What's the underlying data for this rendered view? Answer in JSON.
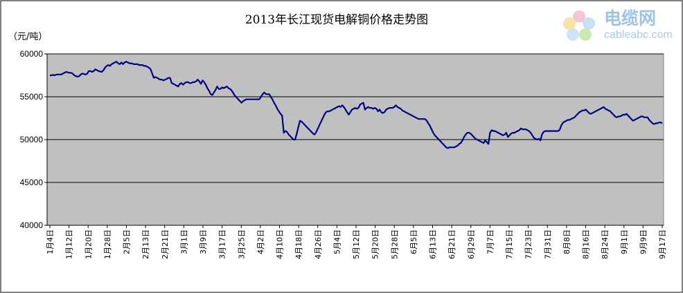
{
  "logo": {
    "text": "电缆网",
    "sub": "cableabc.com"
  },
  "chart_data": {
    "type": "line",
    "title": "2013年长江现货电解铜价格走势图",
    "unit_label": "（元/吨）",
    "ylim": [
      40000,
      60000
    ],
    "yticks": [
      60000,
      55000,
      50000,
      45000,
      40000
    ],
    "grid": true,
    "plot_background": "#c0c0c0",
    "line_color": "#000080",
    "legend": "none",
    "xtick_labels": [
      "1月4日",
      "1月12日",
      "1月20日",
      "1月28日",
      "2月5日",
      "2月13日",
      "2月21日",
      "3月1日",
      "3月9日",
      "3月17日",
      "3月25日",
      "4月2日",
      "4月10日",
      "4月18日",
      "4月26日",
      "5月4日",
      "5月12日",
      "5月20日",
      "5月28日",
      "6月5日",
      "6月13日",
      "6月21日",
      "6月29日",
      "7月7日",
      "7月15日",
      "7月23日",
      "7月31日",
      "8月8日",
      "8月16日",
      "8月24日",
      "9月1日",
      "9月9日",
      "9月17日"
    ],
    "series": [
      {
        "values": [
          57500,
          57500,
          57550,
          57500,
          57600,
          57600,
          57600,
          57600,
          57700,
          57800,
          57900,
          57850,
          57800,
          57800,
          57700,
          57500,
          57400,
          57350,
          57400,
          57600,
          57700,
          57650,
          57600,
          57700,
          58000,
          58000,
          57900,
          58000,
          58200,
          58100,
          58000,
          57950,
          57900,
          58100,
          58400,
          58600,
          58700,
          58600,
          58800,
          58900,
          59000,
          59100,
          58900,
          58800,
          59000,
          58800,
          59000,
          59100,
          59000,
          58900,
          58900,
          58850,
          58800,
          58800,
          58800,
          58700,
          58700,
          58700,
          58600,
          58600,
          58500,
          58400,
          58200,
          57700,
          57200,
          57300,
          57200,
          57100,
          57000,
          57000,
          56900,
          57000,
          57100,
          57200,
          57200,
          56600,
          56500,
          56400,
          56300,
          56200,
          56500,
          56600,
          56400,
          56600,
          56700,
          56700,
          56600,
          56600,
          56700,
          56700,
          56800,
          57000,
          56800,
          56500,
          56900,
          56700,
          56400,
          56000,
          55700,
          55300,
          55200,
          55500,
          55800,
          56200,
          55900,
          55900,
          56100,
          56000,
          56100,
          56200,
          56000,
          55900,
          55700,
          55400,
          55100,
          54900,
          54700,
          54500,
          54300,
          54500,
          54600,
          54700,
          54700,
          54700,
          54700,
          54700,
          54700,
          54700,
          54700,
          54700,
          55000,
          55300,
          55500,
          55300,
          55300,
          55300,
          55000,
          54700,
          54300,
          54000,
          53600,
          53300,
          53000,
          52800,
          50800,
          51000,
          50900,
          50600,
          50400,
          50200,
          50000,
          50000,
          50700,
          51500,
          52200,
          52100,
          51900,
          51700,
          51500,
          51300,
          51100,
          50900,
          50700,
          50600,
          50900,
          51300,
          51700,
          52100,
          52500,
          52900,
          53200,
          53300,
          53300,
          53400,
          53500,
          53600,
          53700,
          53800,
          53900,
          53800,
          54000,
          53800,
          53500,
          53200,
          52900,
          53200,
          53500,
          53600,
          53700,
          53600,
          53700,
          54100,
          54200,
          54300,
          53500,
          53700,
          53800,
          53700,
          53700,
          53600,
          53700,
          53600,
          53300,
          53500,
          53200,
          53100,
          53200,
          53500,
          53600,
          53700,
          53700,
          53700,
          53800,
          54000,
          53800,
          53700,
          53600,
          53400,
          53300,
          53200,
          53100,
          53000,
          52900,
          52800,
          52700,
          52600,
          52500,
          52400,
          52400,
          52400,
          52400,
          52400,
          52200,
          51900,
          51600,
          51200,
          50800,
          50500,
          50300,
          50100,
          49900,
          49700,
          49500,
          49300,
          49100,
          49000,
          49100,
          49100,
          49100,
          49100,
          49200,
          49300,
          49500,
          49600,
          49900,
          50300,
          50600,
          50800,
          50800,
          50700,
          50500,
          50300,
          50100,
          50000,
          49900,
          49800,
          49700,
          49600,
          49900,
          49700,
          49500,
          50800,
          51100,
          51000,
          51000,
          50900,
          50800,
          50700,
          50600,
          50500,
          50600,
          50800,
          50300,
          50500,
          50700,
          50800,
          50800,
          50900,
          51000,
          51100,
          51300,
          51200,
          51200,
          51200,
          51100,
          51000,
          50800,
          50500,
          50200,
          50100,
          50000,
          50100,
          49900,
          50600,
          50900,
          51000,
          51000,
          51000,
          51000,
          51000,
          51000,
          51000,
          51000,
          51000,
          51200,
          51700,
          52000,
          52100,
          52200,
          52300,
          52300,
          52400,
          52500,
          52600,
          52800,
          53000,
          53200,
          53300,
          53400,
          53400,
          53500,
          53300,
          53100,
          53000,
          53100,
          53200,
          53300,
          53400,
          53500,
          53600,
          53700,
          53800,
          53600,
          53500,
          53400,
          53300,
          53100,
          52900,
          52700,
          52600,
          52700,
          52700,
          52800,
          52900,
          52900,
          53000,
          52800,
          52600,
          52400,
          52200,
          52300,
          52400,
          52500,
          52600,
          52700,
          52700,
          52600,
          52600,
          52600,
          52300,
          52100,
          51900,
          51800,
          51900,
          51900,
          52000,
          52000,
          51900
        ]
      }
    ]
  }
}
